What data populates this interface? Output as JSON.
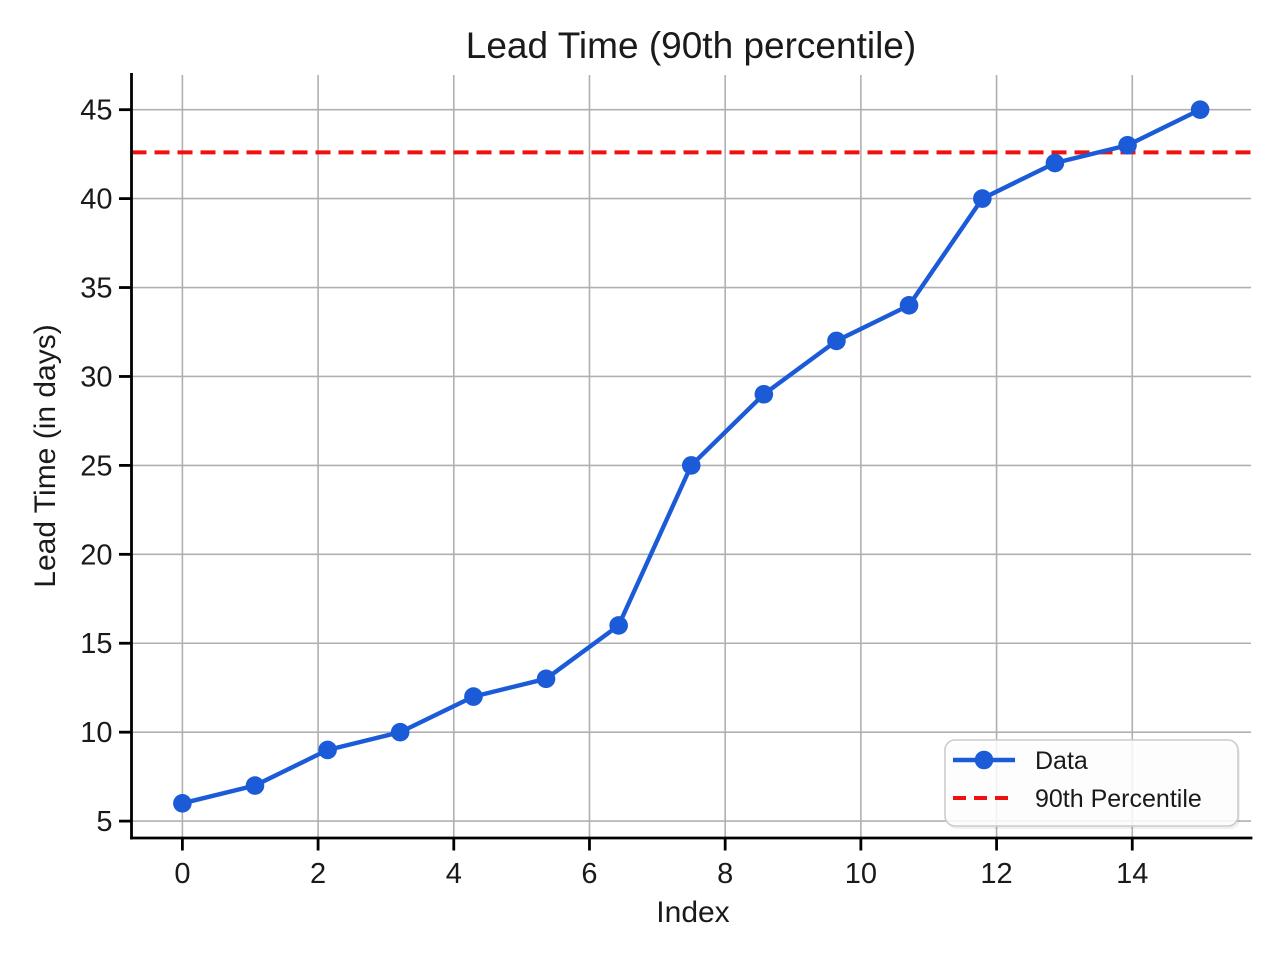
{
  "chart_data": {
    "type": "line",
    "title": "Lead Time (90th percentile)",
    "xlabel": "Index",
    "ylabel": "Lead Time (in days)",
    "x": [
      0,
      1.07,
      2.14,
      3.21,
      4.29,
      5.36,
      6.43,
      7.5,
      8.57,
      9.64,
      10.71,
      11.79,
      12.86,
      13.93,
      15
    ],
    "series": [
      {
        "name": "Data",
        "type": "line-markers",
        "values": [
          6,
          7,
          9,
          10,
          12,
          13,
          16,
          25,
          29,
          32,
          34,
          40,
          42,
          43,
          45
        ],
        "color": "#1b5bd8"
      },
      {
        "name": "90th Percentile",
        "type": "horizontal-dashed-line",
        "value": 42.6,
        "color": "#f01010"
      }
    ],
    "xticks": [
      0,
      2,
      4,
      6,
      8,
      10,
      12,
      14
    ],
    "yticks": [
      5,
      10,
      15,
      20,
      25,
      30,
      35,
      40,
      45
    ],
    "xlim": [
      -0.75,
      15.75
    ],
    "ylim": [
      4.05,
      46.95
    ],
    "grid": true,
    "legend_position": "lower right",
    "legend_labels": [
      "Data",
      "90th Percentile"
    ]
  },
  "colors": {
    "data_line": "#1b5bd8",
    "percentile_line": "#f01010",
    "gridline": "#b0b0b0",
    "axis": "#000000",
    "text": "#1a1a1a",
    "legend_border": "#cccccc",
    "background": "#ffffff"
  }
}
